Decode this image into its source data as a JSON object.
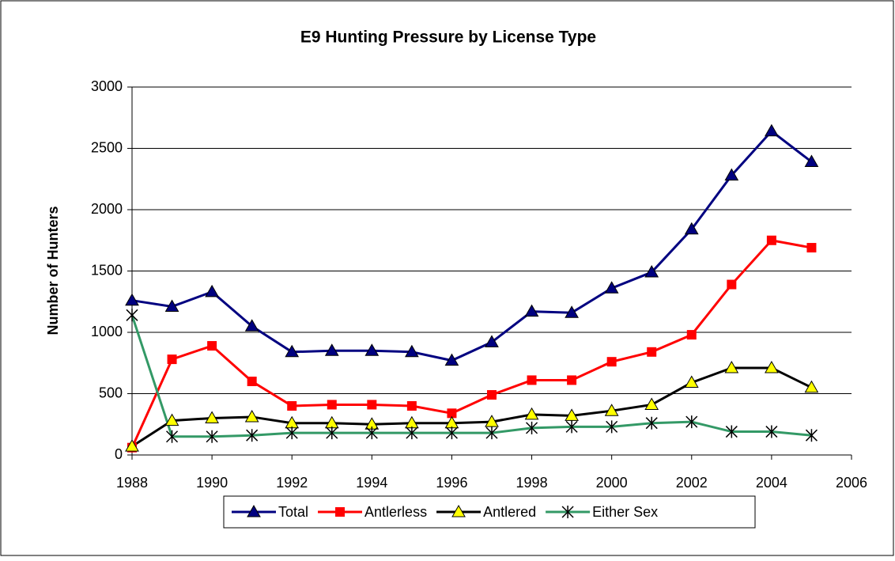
{
  "chart_data": {
    "type": "line",
    "title": "E9 Hunting Pressure by License Type",
    "y_label": "Number of Hunters",
    "x": [
      1988,
      1989,
      1990,
      1991,
      1992,
      1993,
      1994,
      1995,
      1996,
      1997,
      1998,
      1999,
      2000,
      2001,
      2002,
      2003,
      2004,
      2005
    ],
    "xlim": [
      1988,
      2006
    ],
    "xticks": [
      1988,
      1990,
      1992,
      1994,
      1996,
      1998,
      2000,
      2002,
      2004,
      2006
    ],
    "ylim": [
      0,
      3000
    ],
    "yticks": [
      0,
      500,
      1000,
      1500,
      2000,
      2500,
      3000
    ],
    "grid": true,
    "legend": "bottom",
    "series": [
      {
        "name": "Total",
        "color": "#000080",
        "marker": "triangle",
        "marker_color": "#000080",
        "values": [
          1260,
          1210,
          1330,
          1050,
          840,
          850,
          850,
          840,
          770,
          920,
          1170,
          1160,
          1360,
          1490,
          1840,
          2280,
          2640,
          2390
        ]
      },
      {
        "name": "Antlerless",
        "color": "#ff0000",
        "marker": "square",
        "marker_color": "#ff0000",
        "values": [
          60,
          780,
          890,
          600,
          400,
          410,
          410,
          400,
          340,
          490,
          610,
          610,
          760,
          840,
          980,
          1390,
          1750,
          1690
        ]
      },
      {
        "name": "Antlered",
        "color": "#000000",
        "marker": "triangle",
        "marker_color": "#ffff00",
        "values": [
          70,
          280,
          300,
          310,
          260,
          260,
          250,
          260,
          260,
          270,
          330,
          320,
          360,
          410,
          590,
          710,
          710,
          550
        ]
      },
      {
        "name": "Either Sex",
        "color": "#339966",
        "marker": "star",
        "marker_color": "#000000",
        "values": [
          1140,
          150,
          150,
          160,
          180,
          180,
          180,
          180,
          180,
          180,
          220,
          230,
          230,
          260,
          270,
          190,
          190,
          160
        ]
      }
    ]
  }
}
